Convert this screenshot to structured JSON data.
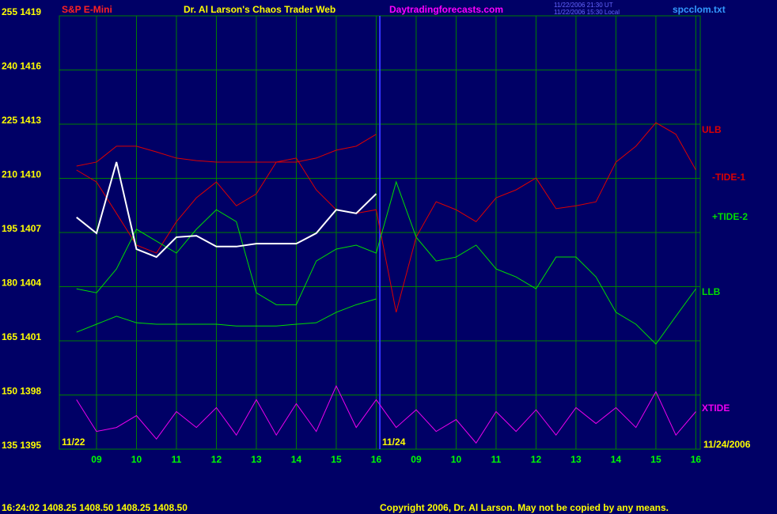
{
  "chart_data": {
    "type": "line",
    "title": "Dr. Al Larson's Chaos Trader Web",
    "instrument": "S&P E-Mini",
    "website": "Daytradingforecasts.com",
    "timestamp_ut": "11/22/2006 21:30 UT",
    "timestamp_local": "11/22/2006 15:30 Local",
    "file_name": "spcclom.txt",
    "date_left": "11/22",
    "date_mid": "11/24",
    "date_right": "11/24/2006",
    "quote": "16:24:02  1408.25 1408.50 1408.25 1408.50",
    "copyright": "Copyright 2006, Dr. Al Larson. May not be copied by any means.",
    "x": [
      0.5,
      1,
      1.5,
      2,
      2.5,
      3,
      3.5,
      4,
      4.5,
      5,
      5.5,
      6,
      6.5,
      7,
      7.5,
      8,
      8.5,
      9,
      9.5,
      10,
      10.5,
      11,
      11.5,
      12,
      12.5,
      13,
      13.5,
      14,
      14.5,
      15,
      15.5,
      16
    ],
    "xlim": [
      0.07,
      16.11
    ],
    "xticks": [
      {
        "value": 1,
        "label": "09"
      },
      {
        "value": 2,
        "label": "10"
      },
      {
        "value": 3,
        "label": "11"
      },
      {
        "value": 4,
        "label": "12"
      },
      {
        "value": 5,
        "label": "13"
      },
      {
        "value": 6,
        "label": "14"
      },
      {
        "value": 7,
        "label": "15"
      },
      {
        "value": 8,
        "label": "16"
      },
      {
        "value": 9,
        "label": "09"
      },
      {
        "value": 10,
        "label": "10"
      },
      {
        "value": 11,
        "label": "11"
      },
      {
        "value": 12,
        "label": "12"
      },
      {
        "value": 13,
        "label": "13"
      },
      {
        "value": 14,
        "label": "14"
      },
      {
        "value": 15,
        "label": "15"
      },
      {
        "value": 16,
        "label": "16"
      }
    ],
    "ylim": [
      135,
      255
    ],
    "yticks": [
      {
        "value": 135,
        "label": "135 1395"
      },
      {
        "value": 150,
        "label": "150 1398"
      },
      {
        "value": 165,
        "label": "165 1401"
      },
      {
        "value": 180,
        "label": "180 1404"
      },
      {
        "value": 195,
        "label": "195 1407"
      },
      {
        "value": 210,
        "label": "210 1410"
      },
      {
        "value": 225,
        "label": "225 1413"
      },
      {
        "value": 240,
        "label": "240 1416"
      },
      {
        "value": 255,
        "label": "255 1419"
      }
    ],
    "grid": true,
    "series": [
      {
        "name": "ULB",
        "color": "#dd0000",
        "values": [
          213.4,
          214.5,
          218.9,
          218.9,
          217.3,
          215.6,
          214.9,
          214.5,
          214.5,
          214.5,
          214.5,
          214.5,
          215.6,
          217.8,
          218.9,
          222.2,
          null,
          null,
          null,
          null,
          null,
          null,
          null,
          null,
          null,
          null,
          null,
          null,
          null,
          null,
          null,
          null
        ]
      },
      {
        "name": "-TIDE-1",
        "color": "#dd0000",
        "values": [
          212.3,
          209,
          200.3,
          191.5,
          189.3,
          198,
          204.6,
          209,
          202.4,
          205.7,
          214.5,
          215.6,
          206.8,
          201.3,
          200.3,
          201.3,
          172.9,
          193.7,
          203.5,
          201.3,
          198,
          204.6,
          206.8,
          210.1,
          201.6,
          202.4,
          203.5,
          214.5,
          218.9,
          225.4,
          222.2,
          212.3
        ]
      },
      {
        "name": "+TIDE-2",
        "color": "#00dd00",
        "values": [
          179.4,
          178.3,
          184.9,
          195.9,
          192.6,
          189.3,
          195.9,
          201.3,
          198,
          178.3,
          175,
          175,
          187.1,
          190.4,
          191.5,
          189.3,
          209,
          193.7,
          187.1,
          188.2,
          191.5,
          184.9,
          182.7,
          179.4,
          188.2,
          188.2,
          182.7,
          172.9,
          169.6,
          164.1,
          171.8,
          179.4
        ]
      },
      {
        "name": "LLB",
        "color": "#00dd00",
        "values": [
          167.4,
          169.6,
          171.8,
          170,
          169.6,
          169.6,
          169.6,
          169.6,
          169.1,
          169.1,
          169.1,
          169.6,
          170,
          172.9,
          175,
          176.6,
          null,
          null,
          null,
          null,
          null,
          null,
          null,
          null,
          null,
          null,
          null,
          null,
          null,
          null,
          null,
          null
        ]
      },
      {
        "name": "XTIDE",
        "color": "#ee00ee",
        "values": [
          148.7,
          139.9,
          141,
          144.3,
          137.8,
          145.4,
          141,
          146.5,
          138.9,
          148.7,
          138.9,
          147.6,
          139.9,
          152.5,
          141,
          148.7,
          141,
          145.9,
          139.9,
          143.2,
          136.7,
          145.4,
          139.9,
          145.9,
          138.9,
          146.5,
          142.1,
          146.5,
          141,
          150.9,
          138.9,
          145.4
        ]
      }
    ],
    "price": {
      "color": "#ffffff",
      "values": [
        199.2,
        194.8,
        214.5,
        190.4,
        188.2,
        193.7,
        194.1,
        191.1,
        191.1,
        191.9,
        191.9,
        191.9,
        194.8,
        201.3,
        200.3,
        205.7,
        null,
        null,
        null,
        null,
        null,
        null,
        null,
        null,
        null,
        null,
        null,
        null,
        null,
        null,
        null,
        null
      ]
    }
  }
}
